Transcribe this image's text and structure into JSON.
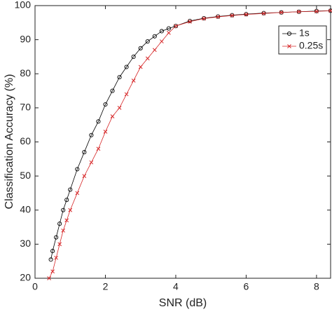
{
  "chart_data": {
    "type": "line",
    "x_label": "SNR (dB)",
    "y_label": "Classification Accuracy (%)",
    "xlim": [
      0,
      8.4
    ],
    "xticks": [
      0,
      2,
      4,
      6,
      8
    ],
    "ylim": [
      20,
      100
    ],
    "yticks": [
      20,
      30,
      40,
      50,
      60,
      70,
      80,
      90,
      100
    ],
    "legend": "upper right",
    "series": [
      {
        "name": "1s",
        "color": "#000000",
        "marker": "circle",
        "x": [
          0.45,
          0.5,
          0.6,
          0.7,
          0.8,
          0.9,
          1.0,
          1.2,
          1.4,
          1.6,
          1.8,
          2.0,
          2.2,
          2.4,
          2.6,
          2.8,
          3.0,
          3.2,
          3.4,
          3.6,
          3.8,
          4.0,
          4.4,
          4.8,
          5.2,
          5.6,
          6.0,
          6.5,
          7.0,
          7.5,
          8.0,
          8.4
        ],
        "values": [
          25.5,
          28,
          32,
          36,
          40,
          43,
          46,
          52,
          57,
          62,
          66,
          71,
          75,
          79,
          82,
          85,
          87.5,
          89.5,
          91,
          92.5,
          93.3,
          94,
          95.5,
          96.3,
          96.8,
          97.2,
          97.5,
          97.8,
          98,
          98.2,
          98.4,
          98.5
        ]
      },
      {
        "name": "0.25s",
        "color": "#d62728",
        "marker": "x",
        "x": [
          0.4,
          0.5,
          0.6,
          0.7,
          0.8,
          0.9,
          1.0,
          1.2,
          1.4,
          1.6,
          1.8,
          2.0,
          2.2,
          2.4,
          2.6,
          2.8,
          3.0,
          3.2,
          3.4,
          3.6,
          3.8,
          4.0,
          4.4,
          4.8,
          5.2,
          5.6,
          6.0,
          6.5,
          7.0,
          7.5,
          8.0,
          8.4
        ],
        "values": [
          20,
          22,
          26,
          30,
          34,
          37,
          40,
          45,
          50,
          54,
          58,
          63,
          67.5,
          70,
          74,
          78,
          82,
          84.5,
          87,
          89.5,
          92,
          94,
          95.3,
          96.2,
          96.7,
          97.1,
          97.4,
          97.7,
          98,
          98.2,
          98.3,
          98.5
        ]
      }
    ]
  }
}
